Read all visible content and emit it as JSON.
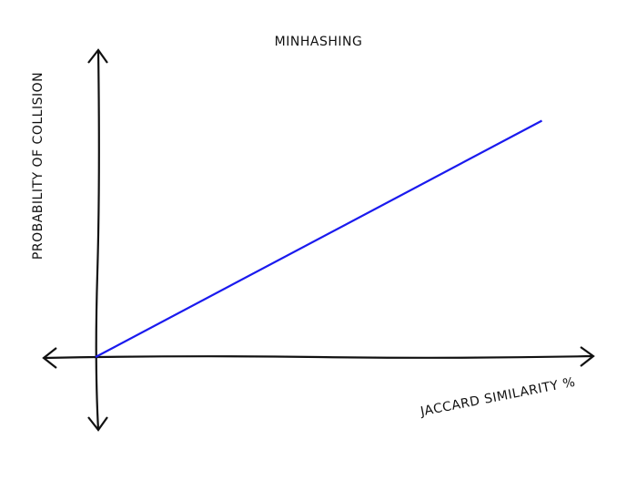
{
  "chart_data": {
    "type": "line",
    "title": "MINHASHING",
    "xlabel": "JACCARD SIMILARITY %",
    "ylabel": "PROBABILITY OF COLLISION",
    "xlim": [
      0,
      1
    ],
    "ylim": [
      0,
      1
    ],
    "grid": false,
    "series": [
      {
        "x": [
          0,
          0.9
        ],
        "y": [
          0,
          0.77
        ],
        "color": "#1a1aee"
      }
    ],
    "axis_color": "#111111"
  }
}
